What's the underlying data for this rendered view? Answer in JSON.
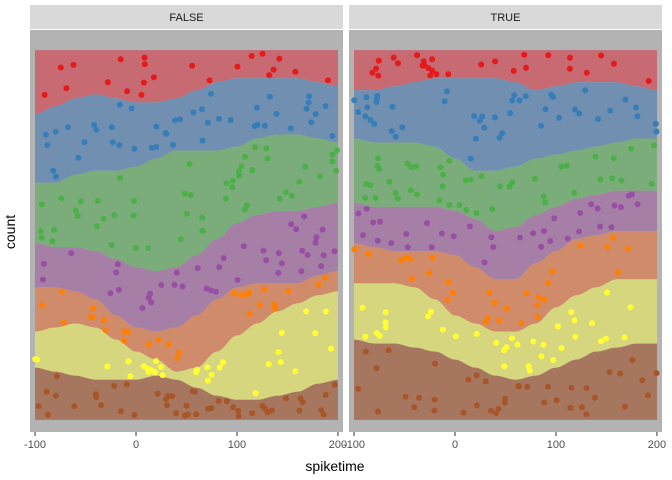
{
  "chart_data": {
    "type": "stacked-density-beeswarm",
    "xlabel": "spiketime",
    "ylabel": "count",
    "xlim": [
      -105,
      205
    ],
    "x_ticks": [
      -100,
      0,
      100,
      200
    ],
    "x_tick_labels": [
      "-100",
      "0",
      "100",
      "200"
    ],
    "panels": [
      {
        "strip_label": "FALSE",
        "x_grid": [
          -100,
          -80,
          -60,
          -40,
          -20,
          0,
          20,
          40,
          60,
          80,
          100,
          120,
          140,
          160,
          180,
          200
        ],
        "boundaries": [
          [
            0.95,
            0.95,
            0.95,
            0.95,
            0.95,
            0.95,
            0.95,
            0.95,
            0.95,
            0.95,
            0.95,
            0.95,
            0.95,
            0.95,
            0.95,
            0.95
          ],
          [
            0.79,
            0.81,
            0.83,
            0.84,
            0.83,
            0.82,
            0.82,
            0.83,
            0.85,
            0.87,
            0.88,
            0.88,
            0.88,
            0.88,
            0.87,
            0.86
          ],
          [
            0.62,
            0.62,
            0.64,
            0.65,
            0.65,
            0.66,
            0.68,
            0.7,
            0.7,
            0.7,
            0.71,
            0.73,
            0.74,
            0.74,
            0.73,
            0.72
          ],
          [
            0.47,
            0.46,
            0.46,
            0.45,
            0.43,
            0.41,
            0.4,
            0.41,
            0.44,
            0.48,
            0.52,
            0.54,
            0.55,
            0.55,
            0.56,
            0.57
          ],
          [
            0.36,
            0.36,
            0.35,
            0.33,
            0.29,
            0.26,
            0.25,
            0.26,
            0.29,
            0.33,
            0.36,
            0.37,
            0.37,
            0.37,
            0.39,
            0.4
          ],
          [
            0.25,
            0.26,
            0.27,
            0.26,
            0.23,
            0.2,
            0.18,
            0.15,
            0.16,
            0.2,
            0.24,
            0.27,
            0.3,
            0.32,
            0.34,
            0.35
          ],
          [
            0.16,
            0.15,
            0.14,
            0.13,
            0.13,
            0.13,
            0.14,
            0.13,
            0.11,
            0.09,
            0.08,
            0.08,
            0.09,
            0.1,
            0.12,
            0.13
          ],
          [
            0.03,
            0.03,
            0.03,
            0.03,
            0.03,
            0.03,
            0.03,
            0.03,
            0.03,
            0.03,
            0.03,
            0.03,
            0.03,
            0.03,
            0.03,
            0.03
          ]
        ],
        "approx_points_per_group": [
          22,
          45,
          50,
          40,
          28,
          30,
          45
        ],
        "seed": 11
      },
      {
        "strip_label": "TRUE",
        "x_grid": [
          -100,
          -80,
          -60,
          -40,
          -20,
          0,
          20,
          40,
          60,
          80,
          100,
          120,
          140,
          160,
          180,
          200
        ],
        "boundaries": [
          [
            0.95,
            0.95,
            0.95,
            0.95,
            0.95,
            0.95,
            0.95,
            0.95,
            0.95,
            0.95,
            0.95,
            0.95,
            0.95,
            0.95,
            0.95,
            0.95
          ],
          [
            0.85,
            0.85,
            0.86,
            0.87,
            0.88,
            0.88,
            0.88,
            0.88,
            0.87,
            0.85,
            0.86,
            0.87,
            0.87,
            0.87,
            0.86,
            0.85
          ],
          [
            0.73,
            0.72,
            0.72,
            0.72,
            0.71,
            0.68,
            0.65,
            0.65,
            0.66,
            0.68,
            0.69,
            0.7,
            0.71,
            0.72,
            0.73,
            0.73
          ],
          [
            0.57,
            0.56,
            0.56,
            0.56,
            0.56,
            0.55,
            0.53,
            0.5,
            0.51,
            0.54,
            0.56,
            0.58,
            0.59,
            0.6,
            0.6,
            0.6
          ],
          [
            0.47,
            0.46,
            0.45,
            0.45,
            0.45,
            0.44,
            0.41,
            0.38,
            0.38,
            0.42,
            0.45,
            0.48,
            0.49,
            0.5,
            0.5,
            0.5
          ],
          [
            0.37,
            0.37,
            0.37,
            0.36,
            0.33,
            0.29,
            0.27,
            0.25,
            0.25,
            0.27,
            0.31,
            0.34,
            0.36,
            0.38,
            0.38,
            0.38
          ],
          [
            0.23,
            0.22,
            0.22,
            0.21,
            0.2,
            0.18,
            0.16,
            0.14,
            0.13,
            0.14,
            0.16,
            0.18,
            0.2,
            0.21,
            0.22,
            0.22
          ],
          [
            0.03,
            0.03,
            0.03,
            0.03,
            0.03,
            0.03,
            0.03,
            0.03,
            0.03,
            0.03,
            0.03,
            0.03,
            0.03,
            0.03,
            0.03,
            0.03
          ]
        ],
        "approx_points_per_group": [
          28,
          45,
          45,
          35,
          30,
          35,
          40
        ],
        "seed": 23
      }
    ],
    "groups": [
      {
        "fill": "#c76a72",
        "point": "#e41a1c"
      },
      {
        "fill": "#718fb1",
        "point": "#377eb8"
      },
      {
        "fill": "#7bad7b",
        "point": "#4daf4a"
      },
      {
        "fill": "#a57fa6",
        "point": "#984ea3"
      },
      {
        "fill": "#d08b6b",
        "point": "#ff7f00"
      },
      {
        "fill": "#d5d67e",
        "point": "#ffff33"
      },
      {
        "fill": "#a7765f",
        "point": "#a65628"
      }
    ],
    "grid": true,
    "panel_background": "#b3b3b3",
    "strip_background": "#d9d9d9",
    "legend": "none"
  }
}
